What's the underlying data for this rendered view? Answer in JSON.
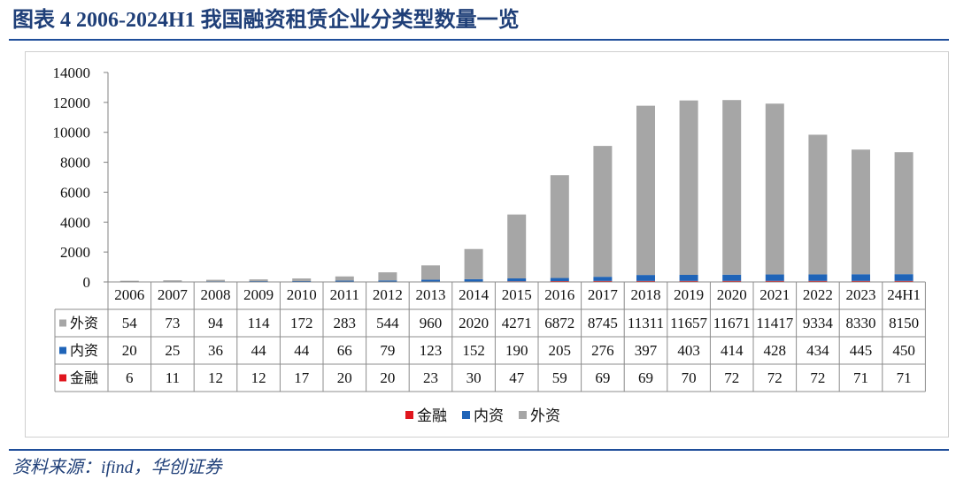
{
  "figure": {
    "title": "图表 4 2006-2024H1 我国融资租赁企业分类型数量一览",
    "source": "资料来源：ifind，华创证券"
  },
  "chart_data": {
    "type": "bar",
    "stacked": true,
    "categories": [
      "2006",
      "2007",
      "2008",
      "2009",
      "2010",
      "2011",
      "2012",
      "2013",
      "2014",
      "2015",
      "2016",
      "2017",
      "2018",
      "2019",
      "2020",
      "2021",
      "2022",
      "2023",
      "24H1"
    ],
    "ylim": [
      0,
      14000
    ],
    "yticks": [
      "0",
      "2000",
      "4000",
      "6000",
      "8000",
      "10000",
      "12000",
      "14000"
    ],
    "grid": false,
    "legend": "bottom",
    "data_table": true,
    "series": [
      {
        "name": "金融",
        "color": "#e0161e",
        "values": [
          6,
          11,
          12,
          12,
          17,
          20,
          20,
          23,
          30,
          47,
          59,
          69,
          69,
          70,
          72,
          72,
          72,
          71,
          71
        ]
      },
      {
        "name": "内资",
        "color": "#1f64b8",
        "values": [
          20,
          25,
          36,
          44,
          44,
          66,
          79,
          123,
          152,
          190,
          205,
          276,
          397,
          403,
          414,
          428,
          434,
          445,
          450
        ]
      },
      {
        "name": "外资",
        "color": "#a6a6a6",
        "values": [
          54,
          73,
          94,
          114,
          172,
          283,
          544,
          960,
          2020,
          4271,
          6872,
          8745,
          11311,
          11657,
          11671,
          11417,
          9334,
          8330,
          8150
        ]
      }
    ]
  }
}
